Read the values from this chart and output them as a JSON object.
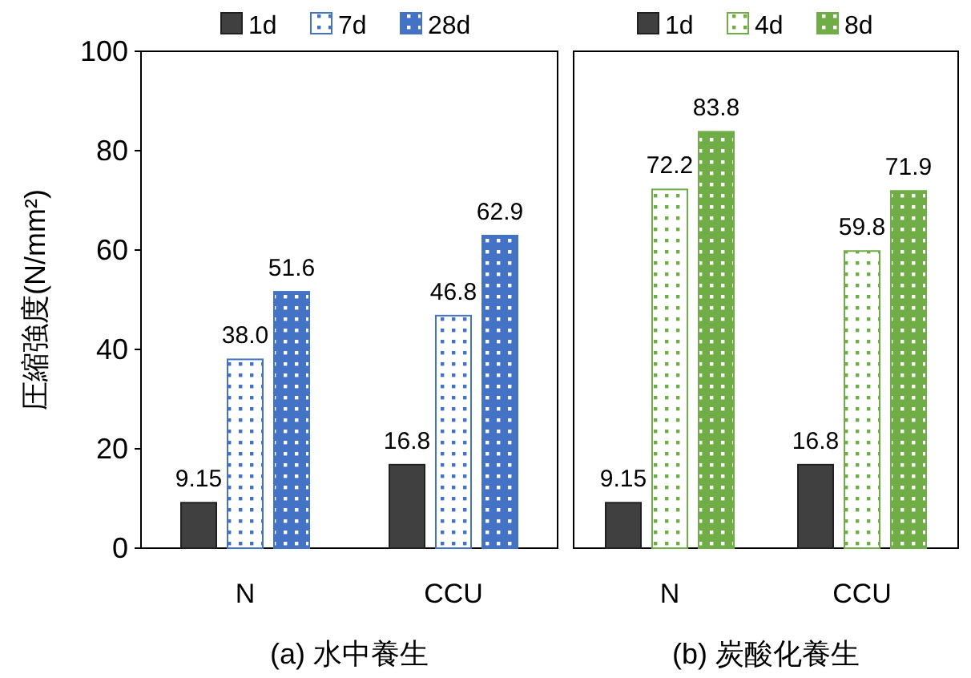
{
  "chart_data": [
    {
      "type": "bar",
      "categories": [
        "N",
        "CCU"
      ],
      "xlabel": "(a) 水中養生",
      "ylabel": "圧縮強度(N/mm²)",
      "ylim": [
        0,
        100
      ],
      "yticks": [
        0,
        20,
        40,
        60,
        80,
        100
      ],
      "legend": "top",
      "grid": false,
      "series": [
        {
          "name": "1d",
          "color": "#404040",
          "values": [
            9.15,
            16.8
          ],
          "value_labels": [
            "9.15",
            "16.8"
          ]
        },
        {
          "name": "7d",
          "color": "#4472c4",
          "values": [
            38.0,
            46.8
          ],
          "value_labels": [
            "38.0",
            "46.8"
          ]
        },
        {
          "name": "28d",
          "color": "#4472c4",
          "values": [
            51.6,
            62.9
          ],
          "value_labels": [
            "51.6",
            "62.9"
          ]
        }
      ]
    },
    {
      "type": "bar",
      "categories": [
        "N",
        "CCU"
      ],
      "xlabel": "(b) 炭酸化養生",
      "ylim": [
        0,
        100
      ],
      "tick_labels": "x",
      "legend": "top",
      "grid": false,
      "series": [
        {
          "name": "1d",
          "color": "#404040",
          "values": [
            9.15,
            16.8
          ],
          "value_labels": [
            "9.15",
            "16.8"
          ]
        },
        {
          "name": "4d",
          "color": "#70ad47",
          "values": [
            72.2,
            59.8
          ],
          "value_labels": [
            "72.2",
            "59.8"
          ]
        },
        {
          "name": "8d",
          "color": "#70ad47",
          "values": [
            83.8,
            71.9
          ],
          "value_labels": [
            "83.8",
            "71.9"
          ]
        }
      ]
    }
  ]
}
